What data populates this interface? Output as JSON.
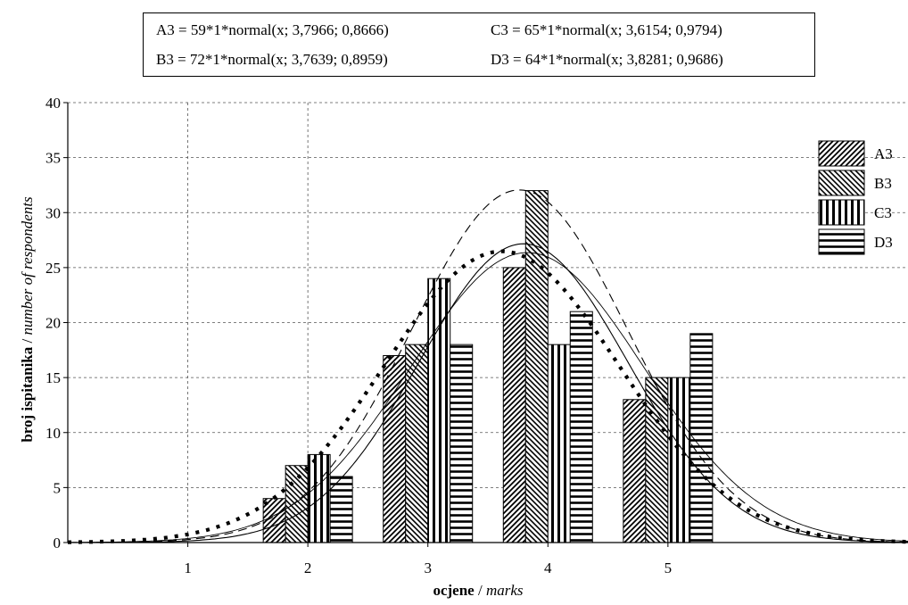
{
  "equations": [
    "A3 = 59*1*normal(x; 3,7966; 0,8666)",
    "C3 = 65*1*normal(x; 3,6154; 0,9794)",
    "B3 = 72*1*normal(x; 3,7639; 0,8959)",
    "D3 = 64*1*normal(x; 3,8281; 0,9686)"
  ],
  "chart_data": {
    "type": "bar",
    "title": "",
    "xlabel_bold": "ocjene",
    "xlabel_sep": " / ",
    "xlabel_italic": "marks",
    "ylabel_bold": "broj ispitanika",
    "ylabel_sep": " / ",
    "ylabel_italic": "number of respondents",
    "categories": [
      "1",
      "2",
      "3",
      "4",
      "5"
    ],
    "xlim": [
      0,
      7
    ],
    "ylim": [
      0,
      40
    ],
    "yticks": [
      "0",
      "5",
      "10",
      "15",
      "20",
      "25",
      "30",
      "35",
      "40"
    ],
    "grid": true,
    "legend_position": "right",
    "series": [
      {
        "name": "A3",
        "values": [
          0,
          4,
          17,
          25,
          13
        ],
        "pattern": "diag-fwd"
      },
      {
        "name": "B3",
        "values": [
          0,
          7,
          18,
          32,
          15
        ],
        "pattern": "diag-back"
      },
      {
        "name": "C3",
        "values": [
          0,
          8,
          24,
          18,
          15
        ],
        "pattern": "vertical"
      },
      {
        "name": "D3",
        "values": [
          0,
          6,
          18,
          21,
          19
        ],
        "pattern": "horizontal"
      }
    ],
    "fits": [
      {
        "series": "A3",
        "n": 59,
        "mean": 3.7966,
        "sd": 0.8666,
        "style": "solid"
      },
      {
        "series": "B3",
        "n": 72,
        "mean": 3.7639,
        "sd": 0.8959,
        "style": "dashed"
      },
      {
        "series": "C3",
        "n": 65,
        "mean": 3.6154,
        "sd": 0.9794,
        "style": "dotted-heavy"
      },
      {
        "series": "D3",
        "n": 64,
        "mean": 3.8281,
        "sd": 0.9686,
        "style": "solid-thin"
      }
    ],
    "colors": {
      "ink": "#000000",
      "grid": "#555555",
      "background": "#ffffff"
    }
  }
}
